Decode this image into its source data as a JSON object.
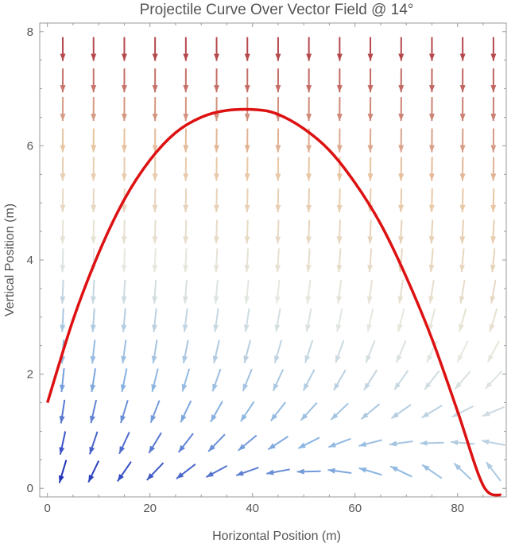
{
  "chart_data": {
    "type": "vector-field-with-curve",
    "title": "Projectile Curve Over Vector Field @ 14°",
    "xlabel": "Horizontal Position (m)",
    "ylabel": "Vertical Position (m)",
    "xlim": [
      -1.5,
      89.5
    ],
    "ylim": [
      -0.15,
      8.15
    ],
    "x_ticks": [
      0,
      20,
      40,
      60,
      80
    ],
    "y_ticks": [
      0,
      2,
      4,
      6,
      8
    ],
    "grid": false,
    "curve": {
      "color": "#dd1111",
      "points": [
        [
          0,
          1.5
        ],
        [
          5,
          2.95
        ],
        [
          10,
          4.12
        ],
        [
          15,
          5.06
        ],
        [
          20,
          5.75
        ],
        [
          25,
          6.23
        ],
        [
          30,
          6.5
        ],
        [
          35,
          6.62
        ],
        [
          41,
          6.63
        ],
        [
          45,
          6.55
        ],
        [
          50,
          6.3
        ],
        [
          55,
          5.92
        ],
        [
          60,
          5.35
        ],
        [
          65,
          4.63
        ],
        [
          70,
          3.7
        ],
        [
          75,
          2.62
        ],
        [
          80,
          1.35
        ],
        [
          85,
          0.05
        ],
        [
          88.5,
          -0.12
        ]
      ]
    },
    "vector_field": {
      "x_positions": [
        3,
        9,
        15,
        21,
        27,
        33,
        39,
        45,
        51,
        57,
        63,
        69,
        75,
        81,
        87
      ],
      "y_positions": [
        0.1,
        0.6,
        1.15,
        1.7,
        2.2,
        2.75,
        3.25,
        3.8,
        4.3,
        4.85,
        5.4,
        5.9,
        6.45,
        6.95,
        7.5
      ],
      "color_scale": [
        "#2233bb",
        "#88b4e2",
        "#e6e9e0",
        "#e8c4a0",
        "#a82a38"
      ]
    }
  }
}
